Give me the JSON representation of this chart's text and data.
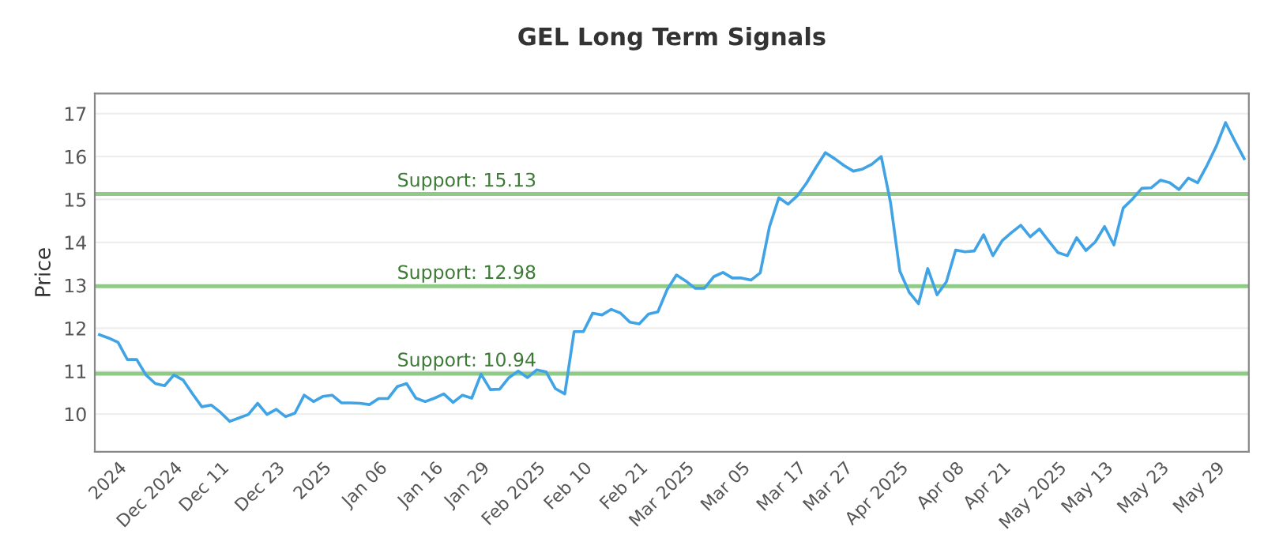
{
  "chart_data": {
    "type": "line",
    "title": "GEL Long Term Signals",
    "ylabel": "Price",
    "categories": [
      null,
      null,
      "2024",
      null,
      null,
      null,
      null,
      null,
      "Dec 2024",
      null,
      null,
      null,
      null,
      "Dec 11",
      null,
      null,
      null,
      null,
      null,
      "Dec 23",
      null,
      null,
      null,
      null,
      "2025",
      null,
      null,
      null,
      null,
      null,
      "Jan 06",
      null,
      null,
      null,
      null,
      null,
      "Jan 16",
      null,
      null,
      null,
      null,
      "Jan 29",
      null,
      null,
      null,
      null,
      null,
      "Feb 2025",
      null,
      null,
      null,
      null,
      "Feb 10",
      null,
      null,
      null,
      null,
      null,
      "Feb 21",
      null,
      null,
      null,
      null,
      "Mar 2025",
      null,
      null,
      null,
      null,
      null,
      "Mar 05",
      null,
      null,
      null,
      null,
      null,
      "Mar 17",
      null,
      null,
      null,
      null,
      "Mar 27",
      null,
      null,
      null,
      null,
      null,
      "Apr 2025",
      null,
      null,
      null,
      null,
      null,
      "Apr 08",
      null,
      null,
      null,
      null,
      "Apr 21",
      null,
      null,
      null,
      null,
      null,
      "May 2025",
      null,
      null,
      null,
      null,
      "May 13",
      null,
      null,
      null,
      null,
      null,
      "May 23",
      null,
      null,
      null,
      null,
      null,
      "May 29",
      null,
      null,
      null
    ],
    "series": [
      {
        "color": "#3fa3e6",
        "values": [
          11.85,
          11.77,
          11.67,
          11.27,
          11.27,
          10.91,
          10.71,
          10.66,
          10.91,
          10.79,
          10.47,
          10.17,
          10.21,
          10.04,
          9.83,
          9.91,
          9.99,
          10.25,
          9.99,
          10.11,
          9.94,
          10.02,
          10.44,
          10.29,
          10.41,
          10.44,
          10.26,
          10.26,
          10.25,
          10.22,
          10.36,
          10.36,
          10.64,
          10.71,
          10.37,
          10.29,
          10.37,
          10.47,
          10.27,
          10.44,
          10.37,
          10.93,
          10.57,
          10.58,
          10.85,
          11.0,
          10.85,
          11.03,
          10.98,
          10.59,
          10.47,
          11.92,
          11.92,
          12.35,
          12.31,
          12.44,
          12.35,
          12.14,
          12.1,
          12.33,
          12.38,
          12.9,
          13.24,
          13.1,
          12.93,
          12.93,
          13.2,
          13.3,
          13.17,
          13.17,
          13.12,
          13.29,
          14.37,
          15.04,
          14.89,
          15.09,
          15.39,
          15.75,
          16.09,
          15.95,
          15.79,
          15.66,
          15.71,
          15.82,
          16.0,
          14.93,
          13.33,
          12.84,
          12.57,
          13.39,
          12.78,
          13.08,
          13.82,
          13.78,
          13.8,
          14.18,
          13.69,
          14.04,
          14.23,
          14.4,
          14.13,
          14.31,
          14.03,
          13.76,
          13.69,
          14.11,
          13.81,
          14.01,
          14.37,
          13.94,
          14.8,
          15.01,
          15.26,
          15.27,
          15.45,
          15.39,
          15.23,
          15.5,
          15.39,
          15.79,
          16.24,
          16.79,
          16.36,
          15.95
        ]
      }
    ],
    "ylim": [
      9.12,
      17.47
    ],
    "yticks": [
      10,
      11,
      12,
      13,
      14,
      15,
      16,
      17
    ],
    "grid": "y",
    "ref_lines": [
      {
        "axis": "y",
        "value": 15.13,
        "label": "Support: 15.13",
        "color": "#8fcb87"
      },
      {
        "axis": "y",
        "value": 12.98,
        "label": "Support: 12.98",
        "color": "#8fcb87"
      },
      {
        "axis": "y",
        "value": 10.94,
        "label": "Support: 10.94",
        "color": "#8fcb87"
      }
    ]
  }
}
